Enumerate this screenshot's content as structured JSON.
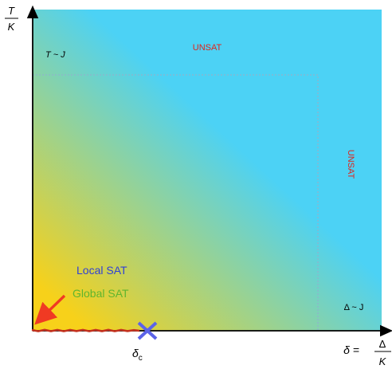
{
  "y_axis": {
    "numerator": "T",
    "denominator": "K"
  },
  "x_axis": {
    "prefix": "δ =",
    "numerator": "Δ",
    "denominator": "K"
  },
  "labels": {
    "t_scale": "T ~ J",
    "delta_scale": "Δ ~ J",
    "unsat_top": "UNSAT",
    "unsat_right": "UNSAT",
    "local_sat": "Local SAT",
    "global_sat": "Global SAT",
    "delta_c_symbol": "δ",
    "delta_c_subscript": "c"
  },
  "colors": {
    "sat_yellow": "#f7d11a",
    "unsat_blue": "#4cd2f5",
    "unsat_text": "#e0241b",
    "local_sat_text": "#2f3fd6",
    "global_sat_text": "#5fb52e",
    "arrow_red": "#f03a23",
    "critical_marker": "#5b63e8",
    "sat_line": "#c4321f",
    "dotted_boundary": "#8fb4cc"
  },
  "icons": {
    "critical_point": "x-marker-icon",
    "pointer": "red-arrow-icon"
  }
}
